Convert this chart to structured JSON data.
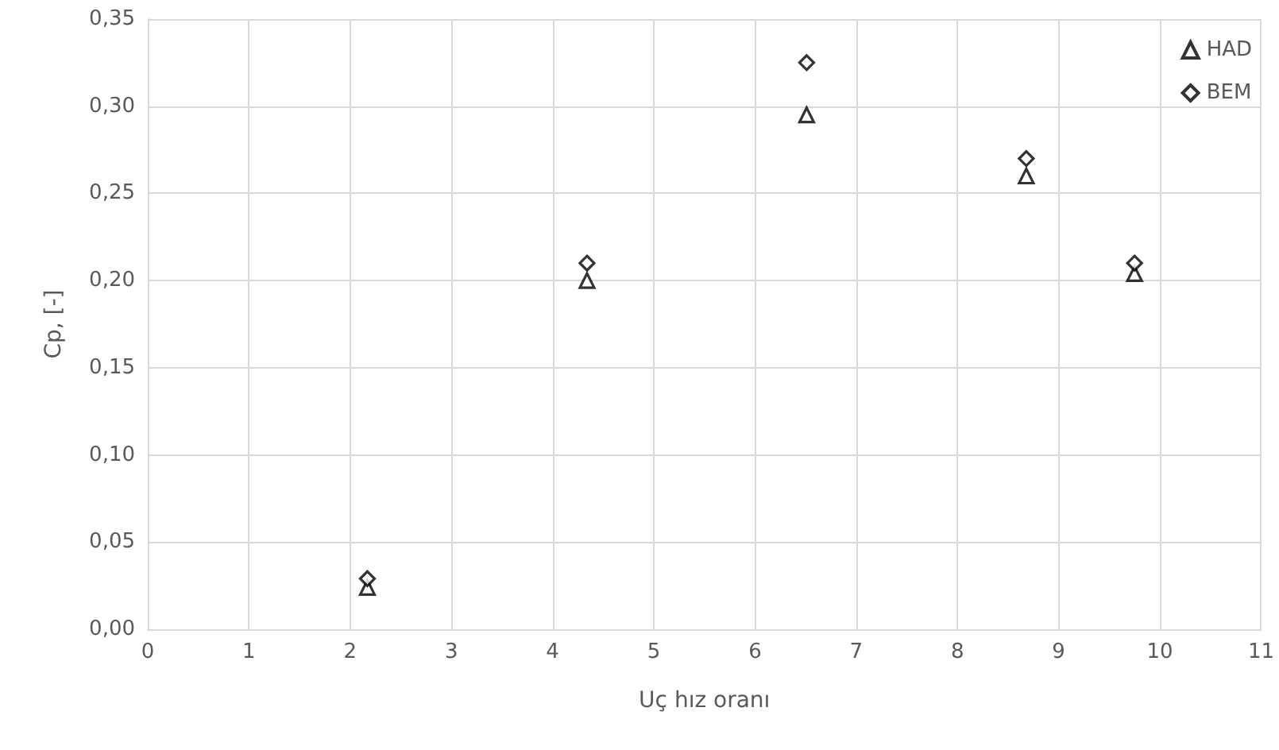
{
  "chart_data": {
    "type": "scatter",
    "xlabel": "Uç hız oranı",
    "ylabel": "Cp, [-]",
    "x": [
      2.17,
      4.34,
      6.51,
      8.68,
      9.75
    ],
    "series": [
      {
        "name": "HAD",
        "color": "#000000",
        "marker": "triangle",
        "values": [
          0.024,
          0.2,
          0.295,
          0.26,
          0.204
        ]
      },
      {
        "name": "BEM",
        "color": "#000000",
        "marker": "diamond",
        "values": [
          0.029,
          0.21,
          0.325,
          0.27,
          0.21
        ]
      }
    ],
    "xlim": [
      0,
      11
    ],
    "xticks": [
      0,
      1,
      2,
      3,
      4,
      5,
      6,
      7,
      8,
      9,
      10,
      11
    ],
    "ylim": [
      0,
      0.35
    ],
    "yticks": [
      {
        "value": 0,
        "label": "0,00"
      },
      {
        "value": 0.05,
        "label": "0,05"
      },
      {
        "value": 0.1,
        "label": "0,10"
      },
      {
        "value": 0.15,
        "label": "0,15"
      },
      {
        "value": 0.2,
        "label": "0,20"
      },
      {
        "value": 0.25,
        "label": "0,25"
      },
      {
        "value": 0.3,
        "label": "0,30"
      },
      {
        "value": 0.35,
        "label": "0,35"
      }
    ],
    "grid": true,
    "legend": "top right"
  }
}
